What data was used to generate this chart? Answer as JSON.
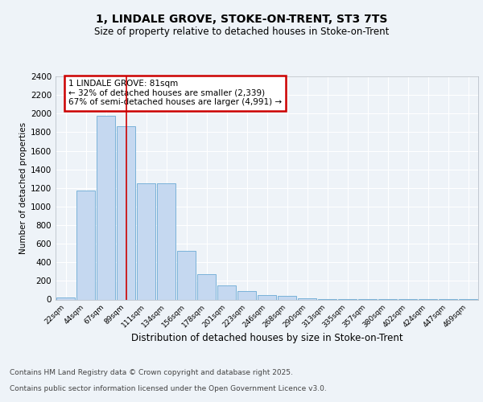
{
  "title": "1, LINDALE GROVE, STOKE-ON-TRENT, ST3 7TS",
  "subtitle": "Size of property relative to detached houses in Stoke-on-Trent",
  "xlabel": "Distribution of detached houses by size in Stoke-on-Trent",
  "ylabel": "Number of detached properties",
  "categories": [
    "22sqm",
    "44sqm",
    "67sqm",
    "89sqm",
    "111sqm",
    "134sqm",
    "156sqm",
    "178sqm",
    "201sqm",
    "223sqm",
    "246sqm",
    "268sqm",
    "290sqm",
    "313sqm",
    "335sqm",
    "357sqm",
    "380sqm",
    "402sqm",
    "424sqm",
    "447sqm",
    "469sqm"
  ],
  "values": [
    25,
    1170,
    1980,
    1860,
    1250,
    1250,
    525,
    275,
    150,
    90,
    50,
    40,
    12,
    8,
    4,
    3,
    2,
    1,
    1,
    1,
    1
  ],
  "bar_color": "#c5d8f0",
  "bar_edge_color": "#6aaad4",
  "annotation_title": "1 LINDALE GROVE: 81sqm",
  "annotation_line1": "← 32% of detached houses are smaller (2,339)",
  "annotation_line2": "67% of semi-detached houses are larger (4,991) →",
  "annotation_box_color": "#ffffff",
  "annotation_box_edge": "#cc0000",
  "vline_color": "#cc0000",
  "vline_x": 3.0,
  "ylim": [
    0,
    2400
  ],
  "yticks": [
    0,
    200,
    400,
    600,
    800,
    1000,
    1200,
    1400,
    1600,
    1800,
    2000,
    2200,
    2400
  ],
  "background_color": "#eef3f8",
  "grid_color": "#ffffff",
  "footer_line1": "Contains HM Land Registry data © Crown copyright and database right 2025.",
  "footer_line2": "Contains public sector information licensed under the Open Government Licence v3.0."
}
